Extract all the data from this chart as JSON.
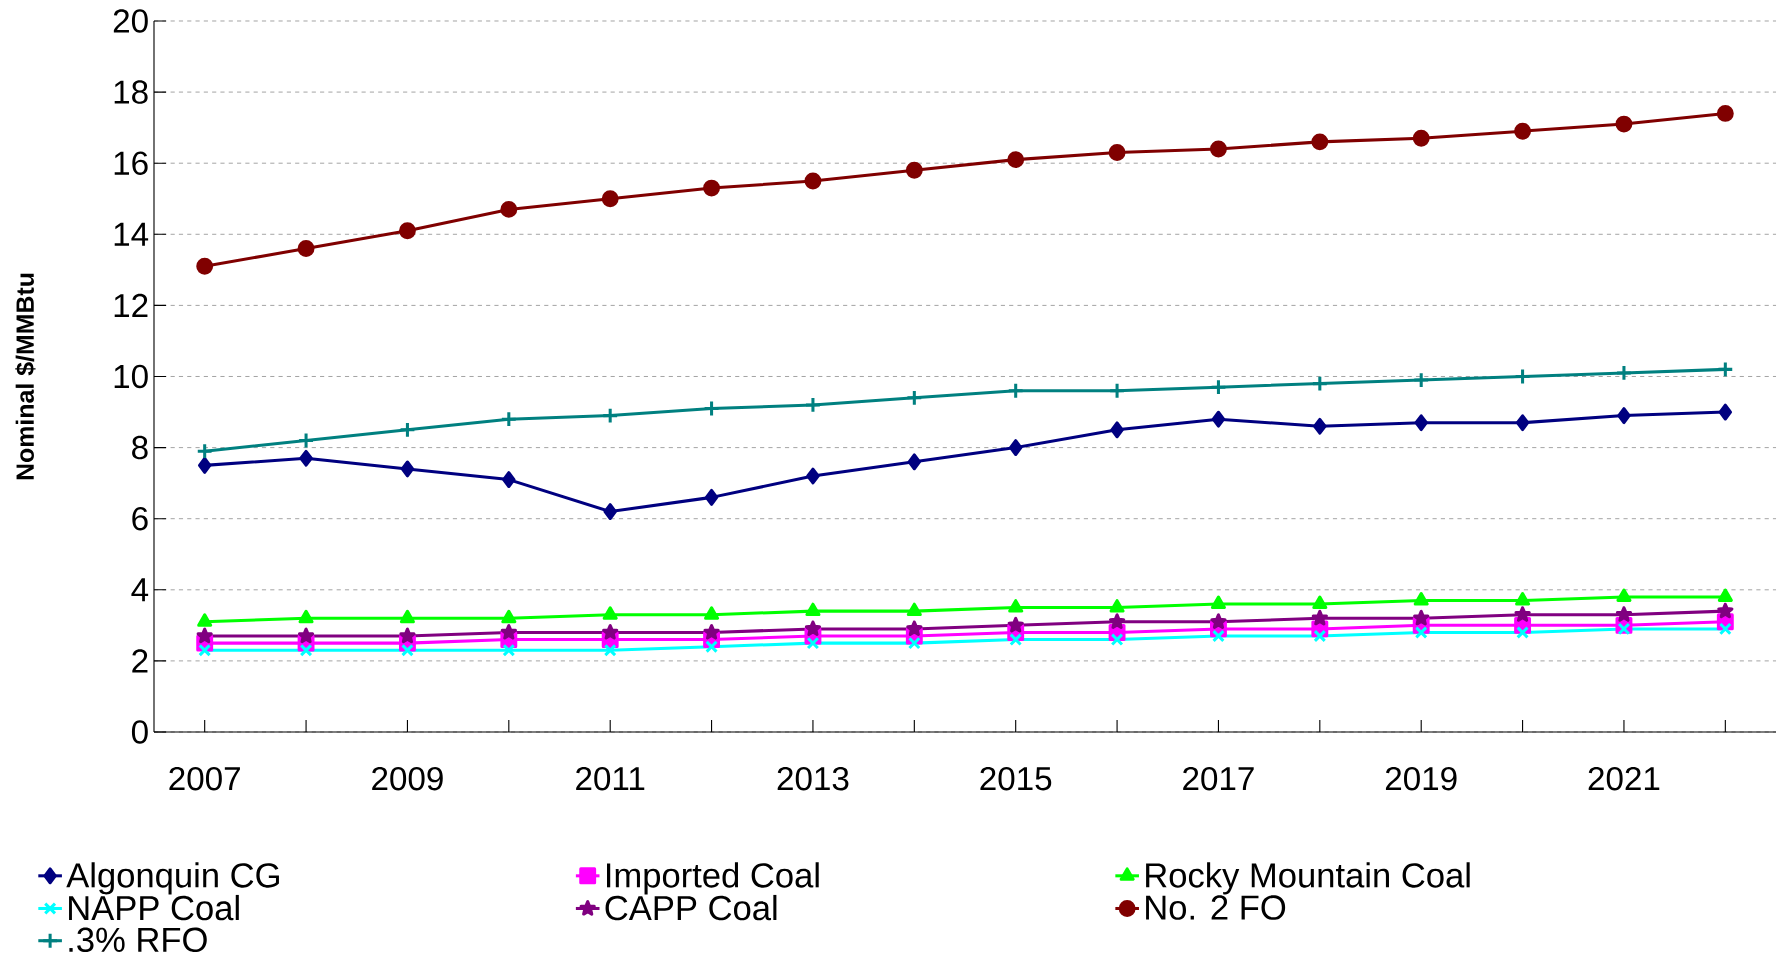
{
  "chart_data": {
    "type": "line",
    "ylabel": "Nominal $/MMBtu",
    "categories": [
      "2007",
      null,
      "2009",
      null,
      "2011",
      null,
      "2013",
      null,
      "2015",
      null,
      "2017",
      null,
      "2019",
      null,
      "2021",
      null
    ],
    "ylim": [
      0,
      20
    ],
    "yticks": [
      0,
      2,
      4,
      6,
      8,
      10,
      12,
      14,
      16,
      18,
      20
    ],
    "grid": "y",
    "legend": "bottom",
    "line_style": "solid",
    "series": [
      {
        "name": "Algonquin CG",
        "color": "#000080",
        "marker": "diamond",
        "values": [
          7.5,
          7.7,
          7.4,
          7.1,
          6.2,
          6.6,
          7.2,
          7.6,
          8.0,
          8.5,
          8.8,
          8.6,
          8.7,
          8.7,
          8.9,
          9.0
        ]
      },
      {
        "name": "Imported Coal",
        "color": "#ff00ff",
        "marker": "square",
        "values": [
          2.5,
          2.5,
          2.5,
          2.6,
          2.6,
          2.6,
          2.7,
          2.7,
          2.8,
          2.8,
          2.9,
          2.9,
          3.0,
          3.0,
          3.0,
          3.1
        ]
      },
      {
        "name": "Rocky Mountain Coal",
        "color": "#00ff00",
        "marker": "triangle",
        "values": [
          3.1,
          3.2,
          3.2,
          3.2,
          3.3,
          3.3,
          3.4,
          3.4,
          3.5,
          3.5,
          3.6,
          3.6,
          3.7,
          3.7,
          3.8,
          3.8
        ]
      },
      {
        "name": "NAPP Coal",
        "color": "#00ffff",
        "marker": "cross",
        "values": [
          2.3,
          2.3,
          2.3,
          2.3,
          2.3,
          2.4,
          2.5,
          2.5,
          2.6,
          2.6,
          2.7,
          2.7,
          2.8,
          2.8,
          2.9,
          2.9
        ]
      },
      {
        "name": "CAPP Coal",
        "color": "#800080",
        "marker": "star",
        "values": [
          2.7,
          2.7,
          2.7,
          2.8,
          2.8,
          2.8,
          2.9,
          2.9,
          3.0,
          3.1,
          3.1,
          3.2,
          3.2,
          3.3,
          3.3,
          3.4
        ]
      },
      {
        "name": "No. 2 FO",
        "color": "#800000",
        "marker": "circle",
        "values": [
          13.1,
          13.6,
          14.1,
          14.7,
          15.0,
          15.3,
          15.5,
          15.8,
          16.1,
          16.3,
          16.4,
          16.6,
          16.7,
          16.9,
          17.1,
          17.4
        ]
      },
      {
        "name": ".3% RFO",
        "color": "#008080",
        "marker": "plus",
        "values": [
          7.9,
          8.2,
          8.5,
          8.8,
          8.9,
          9.1,
          9.2,
          9.4,
          9.6,
          9.6,
          9.7,
          9.8,
          9.9,
          10.0,
          10.1,
          10.2
        ]
      }
    ]
  }
}
